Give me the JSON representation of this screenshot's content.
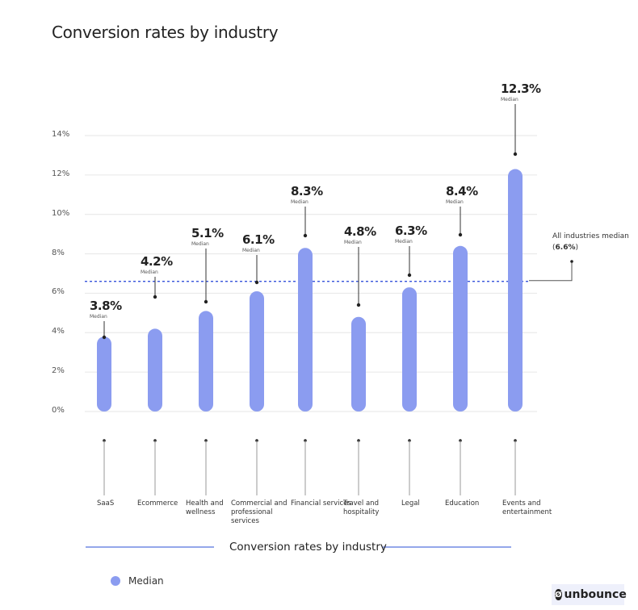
{
  "chart_data": {
    "type": "bar",
    "title": "Conversion rates by industry",
    "xlabel": "Conversion rates by industry",
    "ylabel": "",
    "ylim": [
      0,
      14
    ],
    "yticks": [
      "0%",
      "2%",
      "4%",
      "6%",
      "8%",
      "10%",
      "12%",
      "14%"
    ],
    "categories": [
      "SaaS",
      "Ecommerce",
      "Health and wellness",
      "Commercial and professional services",
      "Financial services",
      "Travel and hospitality",
      "Legal",
      "Education",
      "Events and entertainment"
    ],
    "series": [
      {
        "name": "Median",
        "values": [
          3.8,
          4.2,
          5.1,
          6.1,
          8.3,
          4.8,
          6.3,
          8.4,
          12.3
        ],
        "color": "#8b9cf0"
      }
    ],
    "value_labels": [
      "3.8%",
      "4.2%",
      "5.1%",
      "6.1%",
      "8.3%",
      "4.8%",
      "6.3%",
      "8.4%",
      "12.3%"
    ],
    "sub_label": "Median",
    "reference_line": {
      "value": 6.6,
      "label": "All industries median (",
      "label_value": "6.6%",
      "label_end": ")",
      "color": "#1f3fd6"
    },
    "legend": {
      "label": "Median",
      "placement": "bottom-left"
    },
    "grid": true
  },
  "brand": {
    "logo_text": "unbounce"
  }
}
